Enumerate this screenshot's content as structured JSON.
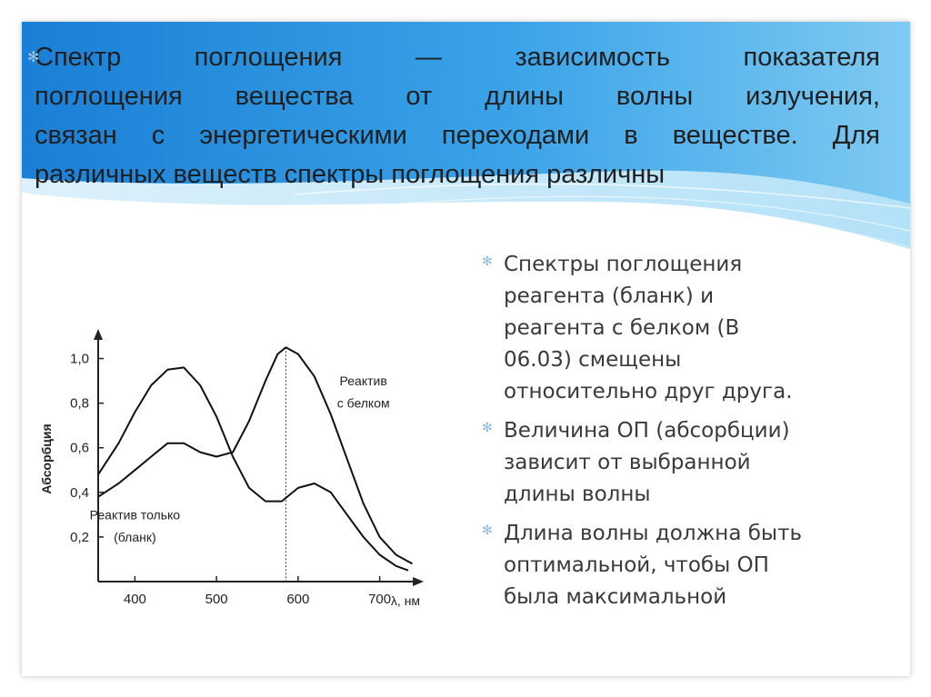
{
  "title_lines": [
    "Спектр поглощения — зависимость показателя",
    "поглощения вещества от длины волны излучения,",
    "связан с энергетическими переходами в веществе. Для",
    "различных веществ спектры поглощения различны"
  ],
  "bullets": [
    {
      "lines": [
        "Спектры поглощения",
        "реагента (бланк) и",
        "реагента с белком (В",
        "06.03) смещены",
        "относительно друг друга."
      ]
    },
    {
      "lines": [
        "Величина ОП (абсорбции)",
        "зависит от выбранной",
        "длины волны"
      ]
    },
    {
      "lines": [
        "Длина волны должна быть",
        "оптимальной, чтобы ОП",
        "была максимальной"
      ]
    }
  ],
  "colors": {
    "banner_dark": "#1f86d8",
    "banner_light": "#8fd0f2",
    "bullet": "#8ab8e0"
  },
  "chart_data": {
    "type": "line",
    "xlabel": "λ, нм",
    "ylabel": "Абсорбция",
    "xlim": [
      355,
      745
    ],
    "ylim": [
      0,
      1.1
    ],
    "x_ticks": [
      400,
      500,
      600,
      700
    ],
    "y_ticks": [
      0.2,
      0.4,
      0.6,
      0.8,
      1.0
    ],
    "y_tick_labels": [
      "0,2",
      "0,4",
      "0,6",
      "0,8",
      "1,0"
    ],
    "vertical_marker_x": 585,
    "annotations": [
      {
        "text": "Реактив",
        "x": 680,
        "y": 0.88
      },
      {
        "text": "с белком",
        "x": 680,
        "y": 0.78
      },
      {
        "text": "Реактив только",
        "x": 400,
        "y": 0.28
      },
      {
        "text": "(бланк)",
        "x": 400,
        "y": 0.18
      }
    ],
    "series": [
      {
        "x": [
          355,
          380,
          400,
          420,
          440,
          460,
          480,
          500,
          520,
          540,
          560,
          580,
          600,
          620,
          640,
          660,
          680,
          700,
          720,
          735
        ],
        "y": [
          0.48,
          0.62,
          0.76,
          0.88,
          0.95,
          0.96,
          0.88,
          0.74,
          0.56,
          0.42,
          0.36,
          0.36,
          0.42,
          0.44,
          0.4,
          0.3,
          0.2,
          0.12,
          0.07,
          0.05
        ]
      },
      {
        "x": [
          355,
          380,
          400,
          420,
          440,
          460,
          480,
          500,
          520,
          540,
          560,
          575,
          585,
          600,
          620,
          640,
          660,
          680,
          700,
          720,
          740
        ],
        "y": [
          0.38,
          0.44,
          0.5,
          0.56,
          0.62,
          0.62,
          0.58,
          0.56,
          0.58,
          0.72,
          0.9,
          1.02,
          1.05,
          1.02,
          0.92,
          0.75,
          0.55,
          0.35,
          0.2,
          0.12,
          0.08
        ]
      }
    ]
  }
}
